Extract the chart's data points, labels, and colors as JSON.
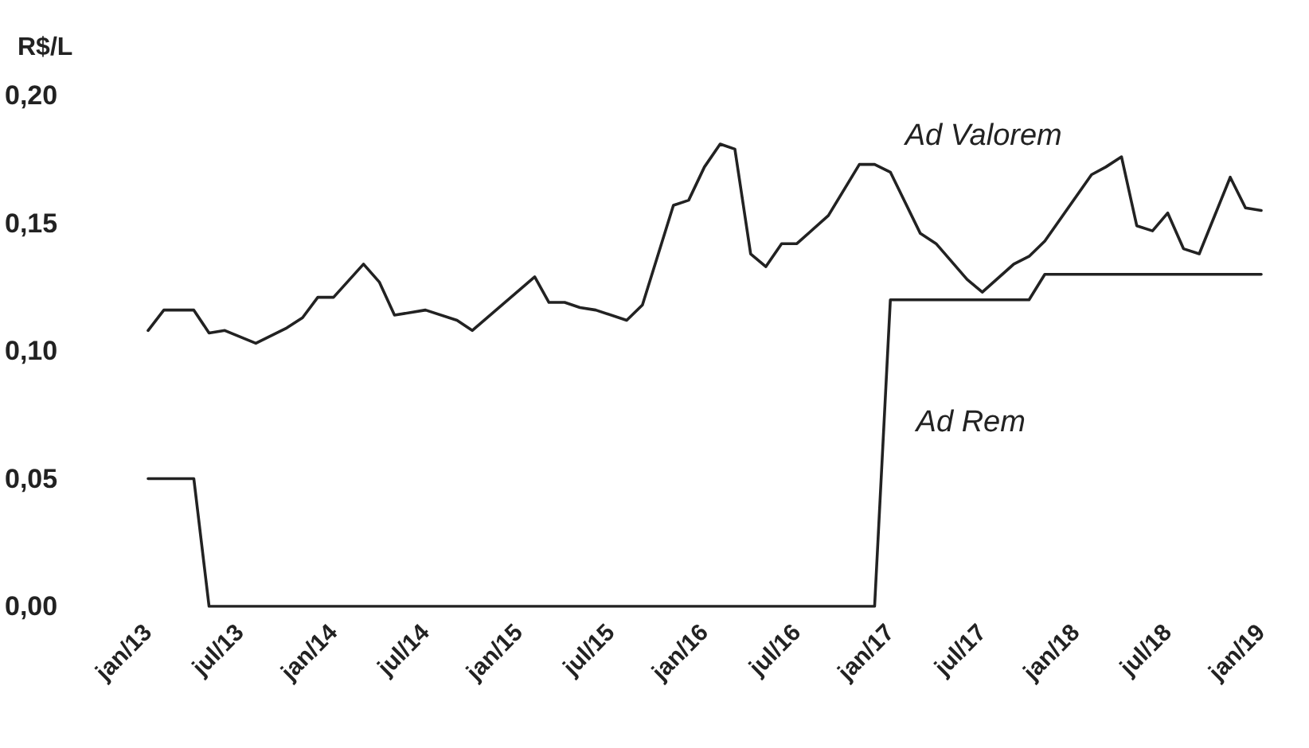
{
  "chart_data": {
    "type": "line",
    "ylabel": "R$/L",
    "ylim": [
      0,
      0.2
    ],
    "yticks": [
      {
        "value": 0,
        "label": "0,00"
      },
      {
        "value": 0.05,
        "label": "0,05"
      },
      {
        "value": 0.1,
        "label": "0,10"
      },
      {
        "value": 0.15,
        "label": "0,15"
      },
      {
        "value": 0.2,
        "label": "0,20"
      }
    ],
    "xlim": [
      "2013-01",
      "2019-01"
    ],
    "xticks": [
      {
        "value": "2013-01",
        "label": "jan/13"
      },
      {
        "value": "2013-07",
        "label": "jul/13"
      },
      {
        "value": "2014-01",
        "label": "jan/14"
      },
      {
        "value": "2014-07",
        "label": "jul/14"
      },
      {
        "value": "2015-01",
        "label": "jan/15"
      },
      {
        "value": "2015-07",
        "label": "jul/15"
      },
      {
        "value": "2016-01",
        "label": "jan/16"
      },
      {
        "value": "2016-07",
        "label": "jul/16"
      },
      {
        "value": "2017-01",
        "label": "jan/17"
      },
      {
        "value": "2017-07",
        "label": "jul/17"
      },
      {
        "value": "2018-01",
        "label": "jan/18"
      },
      {
        "value": "2018-07",
        "label": "jul/18"
      },
      {
        "value": "2019-01",
        "label": "jan/19"
      }
    ],
    "grid": false,
    "legend": false,
    "marker": "none",
    "line_style": "solid",
    "series": [
      {
        "name": "Ad Valorem",
        "color": "#222222",
        "x": [
          "2013-01",
          "2013-02",
          "2013-04",
          "2013-05",
          "2013-06",
          "2013-08",
          "2013-10",
          "2013-11",
          "2013-12",
          "2014-01",
          "2014-03",
          "2014-04",
          "2014-05",
          "2014-07",
          "2014-09",
          "2014-10",
          "2015-02",
          "2015-03",
          "2015-04",
          "2015-05",
          "2015-06",
          "2015-08",
          "2015-09",
          "2015-11",
          "2015-12",
          "2016-01",
          "2016-02",
          "2016-03",
          "2016-04",
          "2016-05",
          "2016-06",
          "2016-07",
          "2016-09",
          "2016-11",
          "2016-12",
          "2017-01",
          "2017-03",
          "2017-04",
          "2017-06",
          "2017-07",
          "2017-09",
          "2017-10",
          "2017-11",
          "2018-02",
          "2018-03",
          "2018-04",
          "2018-05",
          "2018-06",
          "2018-07",
          "2018-08",
          "2018-09",
          "2018-11",
          "2018-12",
          "2019-01"
        ],
        "values": [
          0.108,
          0.116,
          0.116,
          0.107,
          0.108,
          0.103,
          0.109,
          0.113,
          0.121,
          0.121,
          0.134,
          0.127,
          0.114,
          0.116,
          0.112,
          0.108,
          0.129,
          0.119,
          0.119,
          0.117,
          0.116,
          0.112,
          0.118,
          0.157,
          0.159,
          0.172,
          0.181,
          0.179,
          0.138,
          0.133,
          0.142,
          0.142,
          0.153,
          0.173,
          0.173,
          0.17,
          0.146,
          0.142,
          0.128,
          0.123,
          0.134,
          0.137,
          0.143,
          0.169,
          0.172,
          0.176,
          0.149,
          0.147,
          0.154,
          0.14,
          0.138,
          0.168,
          0.156,
          0.155
        ]
      },
      {
        "name": "Ad Rem",
        "color": "#222222",
        "x": [
          "2013-01",
          "2013-04",
          "2013-05",
          "2016-12",
          "2017-01",
          "2017-10",
          "2017-11",
          "2019-01"
        ],
        "values": [
          0.05,
          0.05,
          0,
          0,
          0.12,
          0.12,
          0.13,
          0.13
        ]
      }
    ]
  }
}
